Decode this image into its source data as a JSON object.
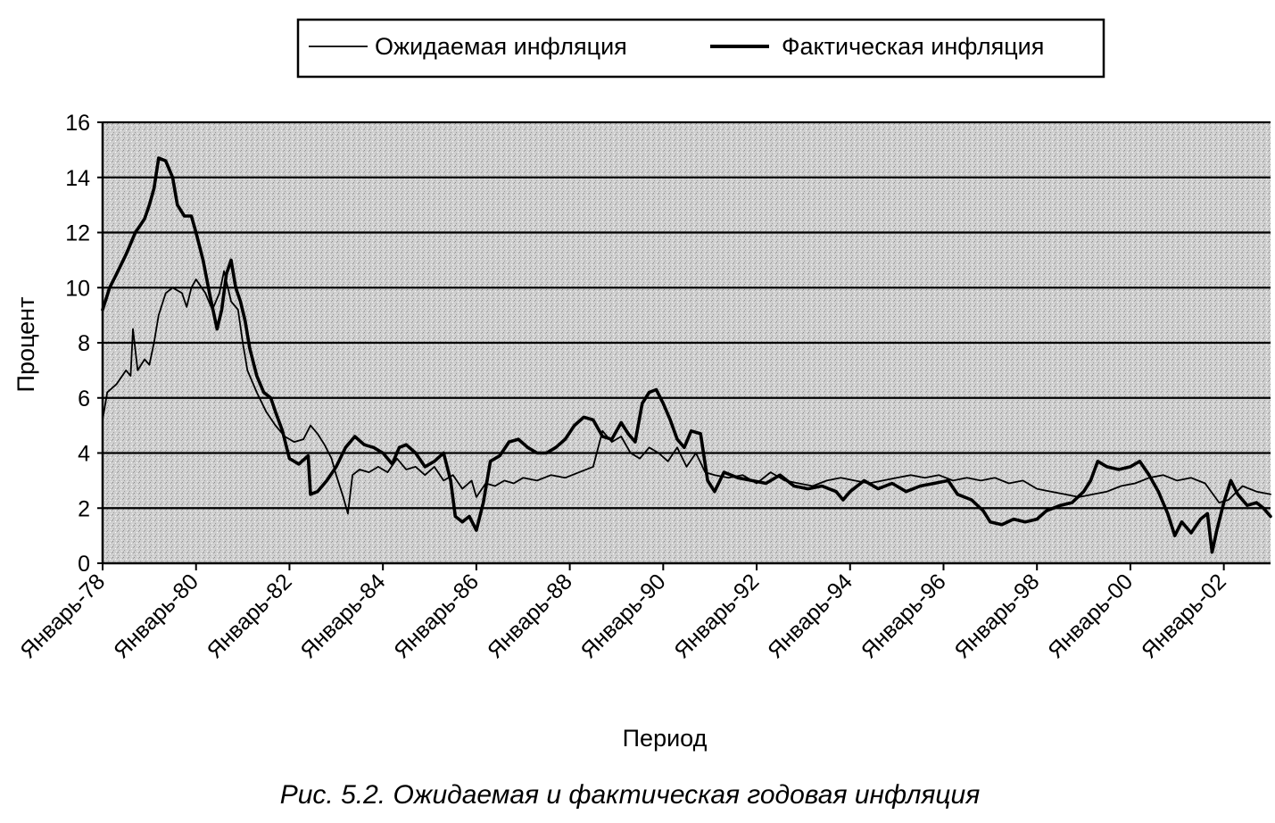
{
  "chart_data": {
    "type": "line",
    "title": "",
    "caption": "Рис. 5.2. Ожидаемая и фактическая годовая инфляция",
    "xlabel": "Период",
    "ylabel": "Процент",
    "ylim": [
      0,
      16
    ],
    "yticks": [
      0,
      2,
      4,
      6,
      8,
      10,
      12,
      14,
      16
    ],
    "xlim": [
      1978.0,
      2003.0
    ],
    "xticks": [
      {
        "x": 1978,
        "label": "Январь-78"
      },
      {
        "x": 1980,
        "label": "Январь-80"
      },
      {
        "x": 1982,
        "label": "Январь-82"
      },
      {
        "x": 1984,
        "label": "Январь-84"
      },
      {
        "x": 1986,
        "label": "Январь-86"
      },
      {
        "x": 1988,
        "label": "Январь-88"
      },
      {
        "x": 1990,
        "label": "Январь-90"
      },
      {
        "x": 1992,
        "label": "Январь-92"
      },
      {
        "x": 1994,
        "label": "Январь-94"
      },
      {
        "x": 1996,
        "label": "Январь-96"
      },
      {
        "x": 1998,
        "label": "Январь-98"
      },
      {
        "x": 2000,
        "label": "Январь-00"
      },
      {
        "x": 2002,
        "label": "Январь-02"
      }
    ],
    "grid": true,
    "legend_position": "top-center",
    "background": "stippled-gray",
    "series": [
      {
        "name": "Ожидаемая инфляция",
        "style": "thin",
        "points": [
          [
            1978.0,
            5.2
          ],
          [
            1978.1,
            6.2
          ],
          [
            1978.3,
            6.5
          ],
          [
            1978.5,
            7.0
          ],
          [
            1978.6,
            6.8
          ],
          [
            1978.65,
            8.5
          ],
          [
            1978.75,
            7.0
          ],
          [
            1978.9,
            7.4
          ],
          [
            1979.0,
            7.2
          ],
          [
            1979.1,
            8.0
          ],
          [
            1979.2,
            9.0
          ],
          [
            1979.35,
            9.8
          ],
          [
            1979.5,
            10.0
          ],
          [
            1979.7,
            9.8
          ],
          [
            1979.8,
            9.3
          ],
          [
            1979.9,
            10.0
          ],
          [
            1980.0,
            10.3
          ],
          [
            1980.2,
            9.8
          ],
          [
            1980.35,
            9.2
          ],
          [
            1980.5,
            9.8
          ],
          [
            1980.6,
            10.6
          ],
          [
            1980.75,
            9.5
          ],
          [
            1980.9,
            9.2
          ],
          [
            1981.0,
            8.0
          ],
          [
            1981.1,
            7.0
          ],
          [
            1981.3,
            6.2
          ],
          [
            1981.5,
            5.5
          ],
          [
            1981.7,
            5.0
          ],
          [
            1981.9,
            4.6
          ],
          [
            1982.1,
            4.4
          ],
          [
            1982.3,
            4.5
          ],
          [
            1982.45,
            5.0
          ],
          [
            1982.6,
            4.7
          ],
          [
            1982.75,
            4.3
          ],
          [
            1982.9,
            3.8
          ],
          [
            1983.0,
            3.2
          ],
          [
            1983.15,
            2.4
          ],
          [
            1983.25,
            1.8
          ],
          [
            1983.35,
            3.2
          ],
          [
            1983.5,
            3.4
          ],
          [
            1983.7,
            3.3
          ],
          [
            1983.9,
            3.5
          ],
          [
            1984.1,
            3.3
          ],
          [
            1984.3,
            3.8
          ],
          [
            1984.5,
            3.4
          ],
          [
            1984.7,
            3.5
          ],
          [
            1984.9,
            3.2
          ],
          [
            1985.1,
            3.5
          ],
          [
            1985.3,
            3.0
          ],
          [
            1985.5,
            3.2
          ],
          [
            1985.7,
            2.7
          ],
          [
            1985.9,
            3.0
          ],
          [
            1986.0,
            2.4
          ],
          [
            1986.2,
            2.9
          ],
          [
            1986.4,
            2.8
          ],
          [
            1986.6,
            3.0
          ],
          [
            1986.8,
            2.9
          ],
          [
            1987.0,
            3.1
          ],
          [
            1987.3,
            3.0
          ],
          [
            1987.6,
            3.2
          ],
          [
            1987.9,
            3.1
          ],
          [
            1988.2,
            3.3
          ],
          [
            1988.5,
            3.5
          ],
          [
            1988.7,
            4.8
          ],
          [
            1988.9,
            4.4
          ],
          [
            1989.1,
            4.6
          ],
          [
            1989.3,
            4.0
          ],
          [
            1989.5,
            3.8
          ],
          [
            1989.7,
            4.2
          ],
          [
            1989.9,
            4.0
          ],
          [
            1990.1,
            3.7
          ],
          [
            1990.3,
            4.2
          ],
          [
            1990.5,
            3.5
          ],
          [
            1990.7,
            4.0
          ],
          [
            1990.9,
            3.3
          ],
          [
            1991.1,
            3.2
          ],
          [
            1991.4,
            3.1
          ],
          [
            1991.7,
            3.2
          ],
          [
            1992.0,
            2.9
          ],
          [
            1992.3,
            3.3
          ],
          [
            1992.6,
            3.0
          ],
          [
            1992.9,
            2.9
          ],
          [
            1993.2,
            2.8
          ],
          [
            1993.5,
            3.0
          ],
          [
            1993.8,
            3.1
          ],
          [
            1994.1,
            3.0
          ],
          [
            1994.4,
            2.9
          ],
          [
            1994.7,
            3.0
          ],
          [
            1995.0,
            3.1
          ],
          [
            1995.3,
            3.2
          ],
          [
            1995.6,
            3.1
          ],
          [
            1995.9,
            3.2
          ],
          [
            1996.2,
            3.0
          ],
          [
            1996.5,
            3.1
          ],
          [
            1996.8,
            3.0
          ],
          [
            1997.1,
            3.1
          ],
          [
            1997.4,
            2.9
          ],
          [
            1997.7,
            3.0
          ],
          [
            1998.0,
            2.7
          ],
          [
            1998.3,
            2.6
          ],
          [
            1998.6,
            2.5
          ],
          [
            1998.9,
            2.4
          ],
          [
            1999.2,
            2.5
          ],
          [
            1999.5,
            2.6
          ],
          [
            1999.8,
            2.8
          ],
          [
            2000.1,
            2.9
          ],
          [
            2000.4,
            3.1
          ],
          [
            2000.7,
            3.2
          ],
          [
            2001.0,
            3.0
          ],
          [
            2001.3,
            3.1
          ],
          [
            2001.6,
            2.9
          ],
          [
            2001.9,
            2.2
          ],
          [
            2002.1,
            2.3
          ],
          [
            2002.4,
            2.8
          ],
          [
            2002.7,
            2.6
          ],
          [
            2003.0,
            2.5
          ]
        ]
      },
      {
        "name": "Фактическая инфляция",
        "style": "thick",
        "points": [
          [
            1978.0,
            9.2
          ],
          [
            1978.15,
            10.0
          ],
          [
            1978.3,
            10.5
          ],
          [
            1978.5,
            11.2
          ],
          [
            1978.7,
            12.0
          ],
          [
            1978.9,
            12.5
          ],
          [
            1979.0,
            13.0
          ],
          [
            1979.1,
            13.6
          ],
          [
            1979.2,
            14.7
          ],
          [
            1979.35,
            14.6
          ],
          [
            1979.5,
            14.0
          ],
          [
            1979.6,
            13.0
          ],
          [
            1979.75,
            12.6
          ],
          [
            1979.9,
            12.6
          ],
          [
            1980.0,
            12.0
          ],
          [
            1980.15,
            11.0
          ],
          [
            1980.3,
            9.7
          ],
          [
            1980.45,
            8.5
          ],
          [
            1980.55,
            9.2
          ],
          [
            1980.65,
            10.5
          ],
          [
            1980.75,
            11.0
          ],
          [
            1980.85,
            10.0
          ],
          [
            1980.95,
            9.5
          ],
          [
            1981.05,
            8.8
          ],
          [
            1981.15,
            7.8
          ],
          [
            1981.3,
            6.8
          ],
          [
            1981.45,
            6.2
          ],
          [
            1981.6,
            6.0
          ],
          [
            1981.7,
            5.5
          ],
          [
            1981.85,
            4.8
          ],
          [
            1982.0,
            3.8
          ],
          [
            1982.2,
            3.6
          ],
          [
            1982.4,
            3.9
          ],
          [
            1982.45,
            2.5
          ],
          [
            1982.6,
            2.6
          ],
          [
            1982.8,
            3.0
          ],
          [
            1983.0,
            3.5
          ],
          [
            1983.2,
            4.2
          ],
          [
            1983.4,
            4.6
          ],
          [
            1983.6,
            4.3
          ],
          [
            1983.8,
            4.2
          ],
          [
            1984.0,
            4.0
          ],
          [
            1984.2,
            3.6
          ],
          [
            1984.35,
            4.2
          ],
          [
            1984.5,
            4.3
          ],
          [
            1984.7,
            4.0
          ],
          [
            1984.9,
            3.5
          ],
          [
            1985.1,
            3.7
          ],
          [
            1985.3,
            4.0
          ],
          [
            1985.45,
            3.0
          ],
          [
            1985.55,
            1.7
          ],
          [
            1985.7,
            1.5
          ],
          [
            1985.85,
            1.7
          ],
          [
            1986.0,
            1.2
          ],
          [
            1986.15,
            2.2
          ],
          [
            1986.3,
            3.7
          ],
          [
            1986.5,
            3.9
          ],
          [
            1986.7,
            4.4
          ],
          [
            1986.9,
            4.5
          ],
          [
            1987.1,
            4.2
          ],
          [
            1987.3,
            4.0
          ],
          [
            1987.5,
            4.0
          ],
          [
            1987.7,
            4.2
          ],
          [
            1987.9,
            4.5
          ],
          [
            1988.1,
            5.0
          ],
          [
            1988.3,
            5.3
          ],
          [
            1988.5,
            5.2
          ],
          [
            1988.7,
            4.6
          ],
          [
            1988.9,
            4.5
          ],
          [
            1989.1,
            5.1
          ],
          [
            1989.25,
            4.7
          ],
          [
            1989.4,
            4.4
          ],
          [
            1989.55,
            5.8
          ],
          [
            1989.7,
            6.2
          ],
          [
            1989.85,
            6.3
          ],
          [
            1990.0,
            5.8
          ],
          [
            1990.15,
            5.2
          ],
          [
            1990.3,
            4.5
          ],
          [
            1990.45,
            4.2
          ],
          [
            1990.6,
            4.8
          ],
          [
            1990.8,
            4.7
          ],
          [
            1990.95,
            3.0
          ],
          [
            1991.1,
            2.6
          ],
          [
            1991.3,
            3.3
          ],
          [
            1991.6,
            3.1
          ],
          [
            1991.9,
            3.0
          ],
          [
            1992.2,
            2.9
          ],
          [
            1992.5,
            3.2
          ],
          [
            1992.8,
            2.8
          ],
          [
            1993.1,
            2.7
          ],
          [
            1993.4,
            2.8
          ],
          [
            1993.7,
            2.6
          ],
          [
            1993.85,
            2.3
          ],
          [
            1994.0,
            2.6
          ],
          [
            1994.3,
            3.0
          ],
          [
            1994.6,
            2.7
          ],
          [
            1994.9,
            2.9
          ],
          [
            1995.2,
            2.6
          ],
          [
            1995.5,
            2.8
          ],
          [
            1995.8,
            2.9
          ],
          [
            1996.1,
            3.0
          ],
          [
            1996.3,
            2.5
          ],
          [
            1996.6,
            2.3
          ],
          [
            1996.85,
            1.9
          ],
          [
            1997.0,
            1.5
          ],
          [
            1997.25,
            1.4
          ],
          [
            1997.5,
            1.6
          ],
          [
            1997.75,
            1.5
          ],
          [
            1998.0,
            1.6
          ],
          [
            1998.2,
            1.9
          ],
          [
            1998.5,
            2.1
          ],
          [
            1998.75,
            2.2
          ],
          [
            1999.0,
            2.6
          ],
          [
            1999.15,
            3.0
          ],
          [
            1999.3,
            3.7
          ],
          [
            1999.5,
            3.5
          ],
          [
            1999.75,
            3.4
          ],
          [
            2000.0,
            3.5
          ],
          [
            2000.2,
            3.7
          ],
          [
            2000.4,
            3.2
          ],
          [
            2000.6,
            2.6
          ],
          [
            2000.8,
            1.8
          ],
          [
            2000.95,
            1.0
          ],
          [
            2001.1,
            1.5
          ],
          [
            2001.3,
            1.1
          ],
          [
            2001.5,
            1.6
          ],
          [
            2001.65,
            1.8
          ],
          [
            2001.75,
            0.4
          ],
          [
            2001.85,
            1.2
          ],
          [
            2002.0,
            2.2
          ],
          [
            2002.15,
            3.0
          ],
          [
            2002.3,
            2.5
          ],
          [
            2002.5,
            2.1
          ],
          [
            2002.7,
            2.2
          ],
          [
            2002.85,
            2.0
          ],
          [
            2003.0,
            1.7
          ]
        ]
      }
    ]
  }
}
